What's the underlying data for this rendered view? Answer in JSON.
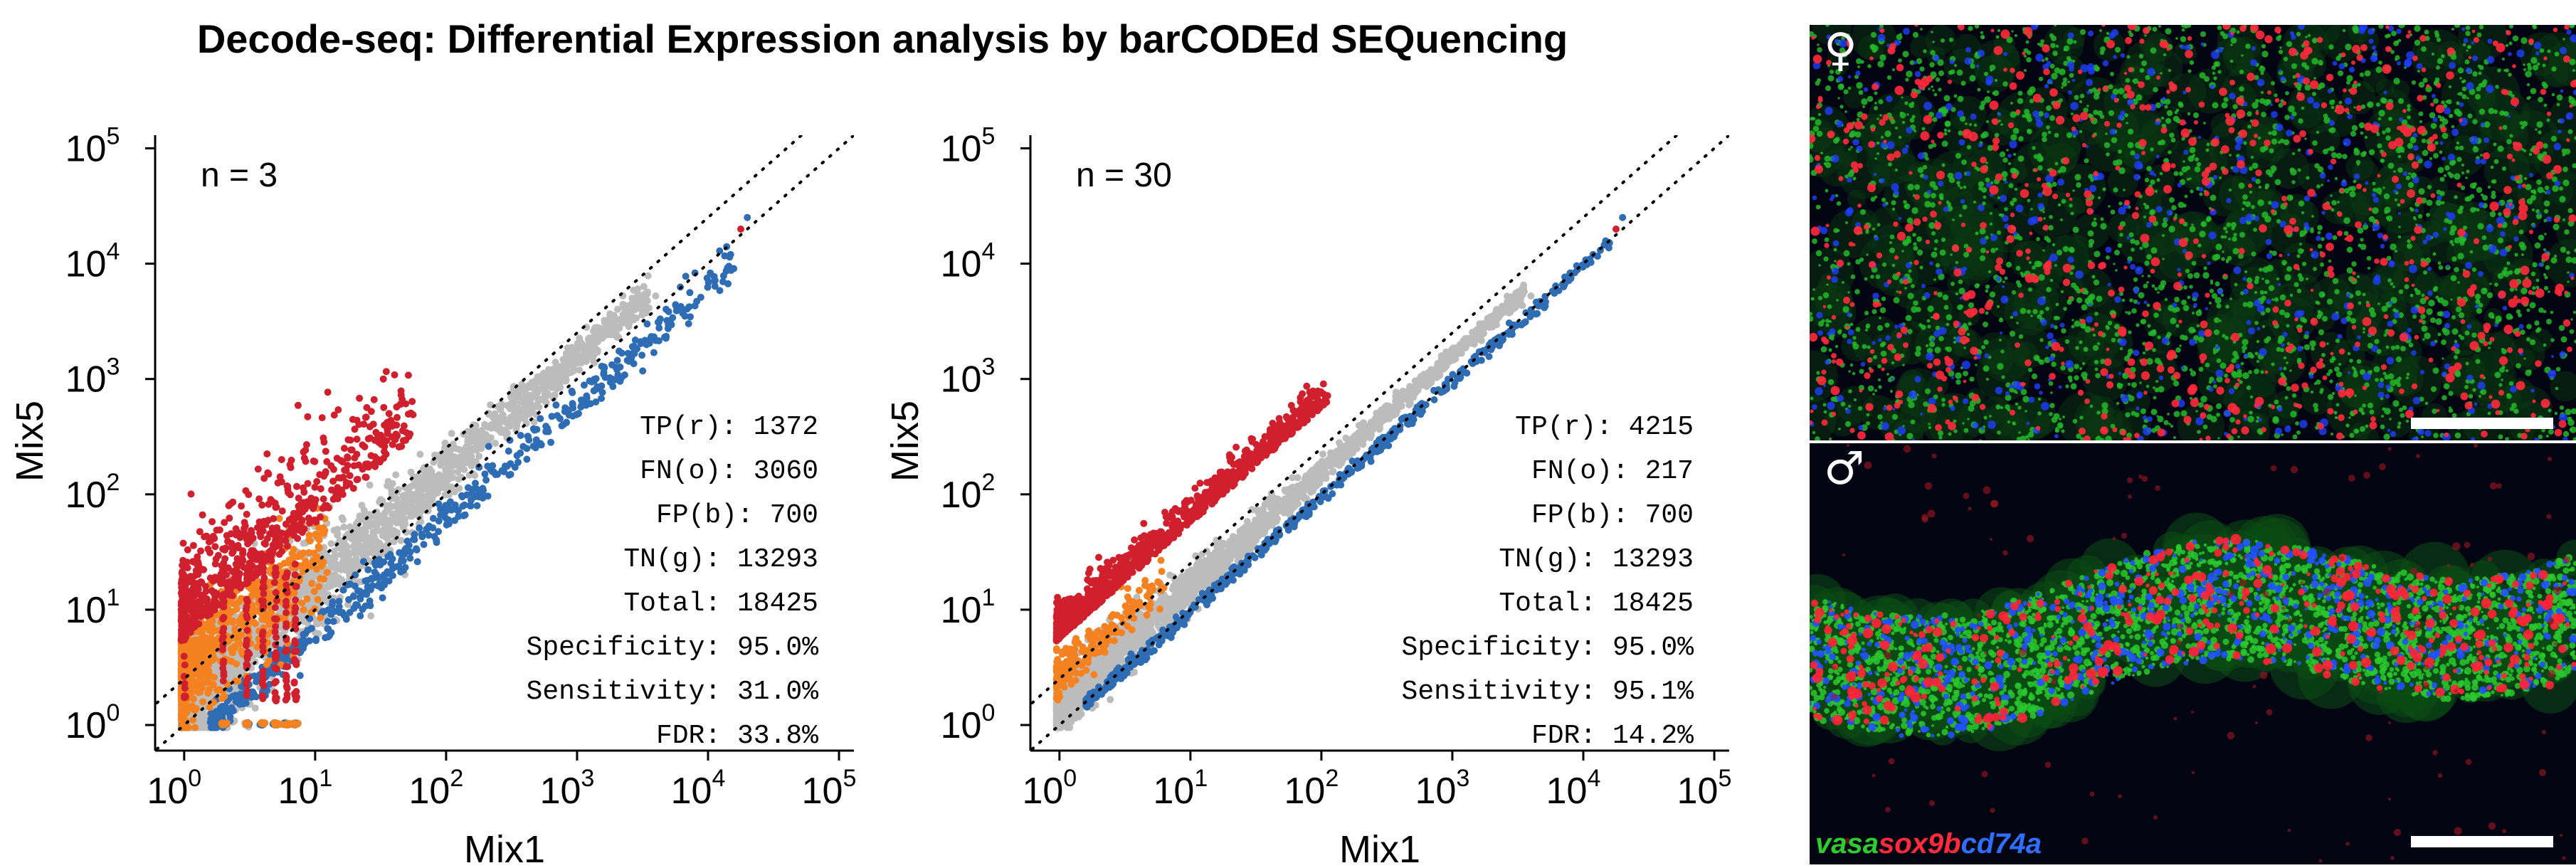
{
  "title": "Decode-seq: Differential Expression analysis by barCODEd SEQuencing",
  "colors": {
    "red": "#d0202e",
    "orange": "#f58220",
    "blue": "#2e6db4",
    "grey": "#bcbcbc",
    "green": "#2ecc2e",
    "legend_red": "#ff2a3c",
    "legend_blue": "#2f6fff"
  },
  "chart_data": [
    {
      "type": "scatter",
      "annotation": "n = 3",
      "xlabel": "Mix1",
      "ylabel": "Mix5",
      "xscale": "log",
      "yscale": "log",
      "xlim": [
        0.6,
        130000
      ],
      "ylim": [
        0.6,
        130000
      ],
      "x_ticks": [
        "10^0",
        "10^1",
        "10^2",
        "10^3",
        "10^4",
        "10^5"
      ],
      "y_ticks": [
        "10^0",
        "10^1",
        "10^2",
        "10^3",
        "10^4",
        "10^5"
      ],
      "reference_lines": [
        "y = x (dotted)",
        "y = 2.5x (dotted)"
      ],
      "series_colors": [
        "grey",
        "blue",
        "orange",
        "red"
      ],
      "stats": [
        {
          "label": "TP(r):",
          "value": "1372"
        },
        {
          "label": "FN(o):",
          "value": "3060"
        },
        {
          "label": "FP(b):",
          "value": "700"
        },
        {
          "label": "TN(g):",
          "value": "13293"
        },
        {
          "label": "Total:",
          "value": "18425"
        },
        {
          "label": "Specificity:",
          "value": "95.0%"
        },
        {
          "label": "Sensitivity:",
          "value": "31.0%"
        },
        {
          "label": "FDR:",
          "value": "33.8%"
        }
      ]
    },
    {
      "type": "scatter",
      "annotation": "n = 30",
      "xlabel": "Mix1",
      "ylabel": "Mix5",
      "xscale": "log",
      "yscale": "log",
      "xlim": [
        0.6,
        130000
      ],
      "ylim": [
        0.6,
        130000
      ],
      "x_ticks": [
        "10^0",
        "10^1",
        "10^2",
        "10^3",
        "10^4",
        "10^5"
      ],
      "y_ticks": [
        "10^0",
        "10^1",
        "10^2",
        "10^3",
        "10^4",
        "10^5"
      ],
      "reference_lines": [
        "y = x (dotted)",
        "y = 2.5x (dotted)"
      ],
      "series_colors": [
        "grey",
        "blue",
        "orange",
        "red"
      ],
      "stats": [
        {
          "label": "TP(r):",
          "value": "4215"
        },
        {
          "label": "FN(o):",
          "value": "217"
        },
        {
          "label": "FP(b):",
          "value": "700"
        },
        {
          "label": "TN(g):",
          "value": "13293"
        },
        {
          "label": "Total:",
          "value": "18425"
        },
        {
          "label": "Specificity:",
          "value": "95.0%"
        },
        {
          "label": "Sensitivity:",
          "value": "95.1%"
        },
        {
          "label": "FDR:",
          "value": "14.2%"
        }
      ]
    }
  ],
  "microscopy": {
    "female_symbol": "♀",
    "male_symbol": "♂",
    "legend": [
      {
        "text": "vasa",
        "color": "green"
      },
      {
        "text": "sox9b",
        "color": "legend_red"
      },
      {
        "text": "cd74a",
        "color": "legend_blue"
      }
    ]
  }
}
